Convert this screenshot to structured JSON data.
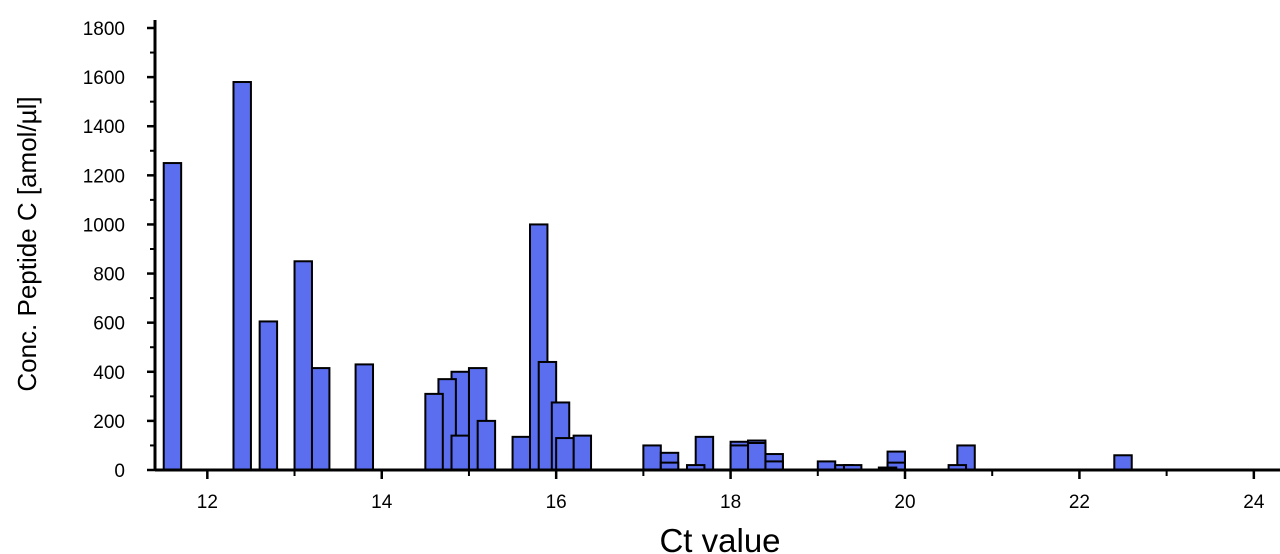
{
  "chart_data": {
    "type": "bar",
    "title": "",
    "xlabel": "Ct value",
    "ylabel": "Conc. Peptide C [amol/µl]",
    "xlim": [
      11.4,
      24.3
    ],
    "ylim": [
      0,
      1800
    ],
    "x_ticks": [
      "12",
      "14",
      "16",
      "18",
      "20",
      "22",
      "24"
    ],
    "y_ticks": [
      "0",
      "200",
      "400",
      "600",
      "800",
      "1000",
      "1200",
      "1400",
      "1600",
      "1800"
    ],
    "bar_width": 0.2,
    "bar_color": "#5B6EF0",
    "edge_color": "#000000",
    "grid": false,
    "legend": "none",
    "bars": [
      {
        "x": 11.6,
        "y": 1250
      },
      {
        "x": 12.4,
        "y": 1580
      },
      {
        "x": 12.7,
        "y": 605
      },
      {
        "x": 13.1,
        "y": 850
      },
      {
        "x": 13.3,
        "y": 415
      },
      {
        "x": 13.8,
        "y": 430
      },
      {
        "x": 14.6,
        "y": 310
      },
      {
        "x": 14.75,
        "y": 370
      },
      {
        "x": 14.9,
        "y": 400
      },
      {
        "x": 14.9,
        "y": 140
      },
      {
        "x": 15.1,
        "y": 415
      },
      {
        "x": 15.2,
        "y": 200
      },
      {
        "x": 15.6,
        "y": 135
      },
      {
        "x": 15.8,
        "y": 1000
      },
      {
        "x": 15.9,
        "y": 440
      },
      {
        "x": 16.05,
        "y": 275
      },
      {
        "x": 16.1,
        "y": 130
      },
      {
        "x": 16.3,
        "y": 140
      },
      {
        "x": 17.1,
        "y": 100
      },
      {
        "x": 17.3,
        "y": 70
      },
      {
        "x": 17.3,
        "y": 30
      },
      {
        "x": 17.6,
        "y": 20
      },
      {
        "x": 17.7,
        "y": 135
      },
      {
        "x": 18.1,
        "y": 115
      },
      {
        "x": 18.1,
        "y": 100
      },
      {
        "x": 18.3,
        "y": 120
      },
      {
        "x": 18.3,
        "y": 110
      },
      {
        "x": 18.5,
        "y": 65
      },
      {
        "x": 18.5,
        "y": 35
      },
      {
        "x": 19.1,
        "y": 35
      },
      {
        "x": 19.3,
        "y": 20
      },
      {
        "x": 19.4,
        "y": 20
      },
      {
        "x": 19.8,
        "y": 10
      },
      {
        "x": 19.9,
        "y": 75
      },
      {
        "x": 19.9,
        "y": 30
      },
      {
        "x": 20.6,
        "y": 20
      },
      {
        "x": 20.7,
        "y": 100
      },
      {
        "x": 22.5,
        "y": 60
      }
    ]
  }
}
